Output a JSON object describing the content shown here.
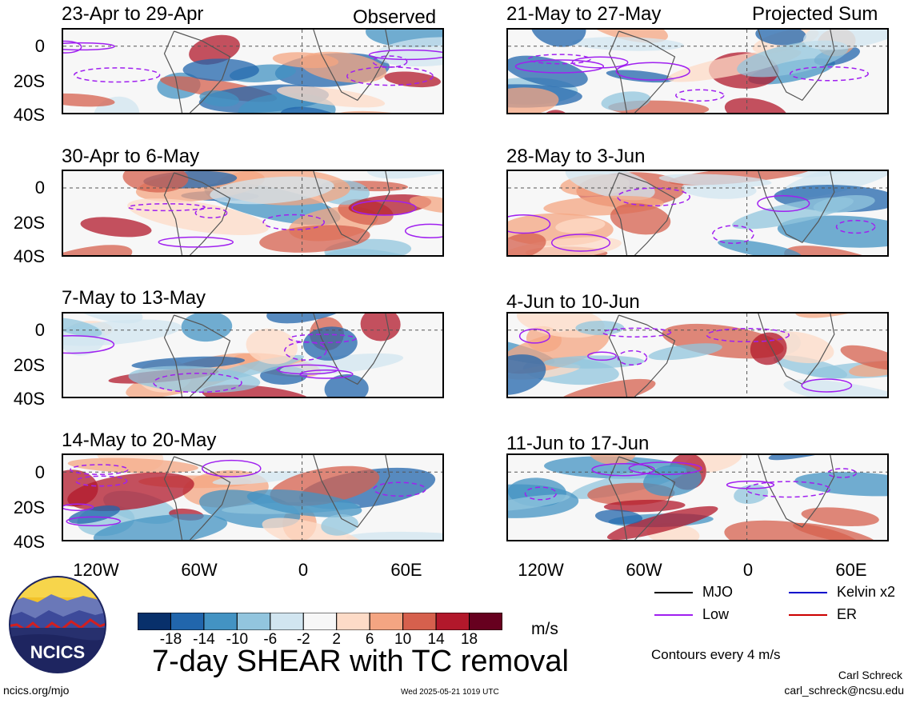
{
  "figure": {
    "title": "7-day SHEAR with TC removal",
    "units": "m/s",
    "contour_note": "Contours every 4 m/s",
    "footer_left": "ncics.org/mjo",
    "footer_center": "Wed 2025-05-21 1019 UTC",
    "author": "Carl Schreck",
    "email": "carl_schreck@ncsu.edu",
    "logo_text": "NCICS"
  },
  "column_tags": {
    "left": "Observed",
    "right": "Projected Sum"
  },
  "panels_left": [
    {
      "title": "23-Apr to 29-Apr"
    },
    {
      "title": "30-Apr to 6-May"
    },
    {
      "title": "7-May to 13-May"
    },
    {
      "title": "14-May to 20-May"
    }
  ],
  "panels_right": [
    {
      "title": "21-May to 27-May"
    },
    {
      "title": "28-May to 3-Jun"
    },
    {
      "title": "4-Jun to 10-Jun"
    },
    {
      "title": "11-Jun to 17-Jun"
    }
  ],
  "axes": {
    "y_ticks": [
      "0",
      "20S",
      "40S"
    ],
    "x_ticks": [
      "120W",
      "60W",
      "0",
      "60E"
    ]
  },
  "colorbar": {
    "labels": [
      "-18",
      "-14",
      "-10",
      "-6",
      "-2",
      "2",
      "6",
      "10",
      "14",
      "18"
    ],
    "colors": [
      "#08306b",
      "#2166ac",
      "#4393c3",
      "#92c5de",
      "#d1e5f0",
      "#f7f7f7",
      "#fddbc7",
      "#f4a582",
      "#d6604d",
      "#b2182b",
      "#67001f"
    ]
  },
  "legend": [
    {
      "label": "MJO",
      "color": "#000000"
    },
    {
      "label": "Kelvin x2",
      "color": "#0000cc"
    },
    {
      "label": "Low",
      "color": "#a020f0"
    },
    {
      "label": "ER",
      "color": "#cc0000"
    }
  ]
}
